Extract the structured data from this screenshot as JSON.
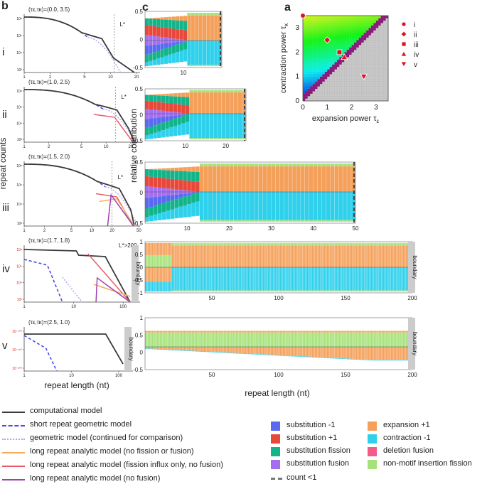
{
  "panel_labels": {
    "b": "b",
    "c": "c",
    "a": "a"
  },
  "row_labels": [
    "i",
    "ii",
    "iii",
    "iv",
    "v"
  ],
  "chart_data": [
    {
      "id": "a",
      "type": "heatmap",
      "xlabel": "expansion power τ",
      "xlabel_sub": "ε",
      "ylabel": "contraction power τ",
      "ylabel_sub": "κ",
      "xlim": [
        0,
        3.5
      ],
      "ylim": [
        0,
        3.5
      ],
      "xticks": [
        "0",
        "1",
        "2",
        "3"
      ],
      "yticks": [
        "0",
        "1",
        "2",
        "3"
      ],
      "markers": [
        {
          "name": "i",
          "shape": "circle",
          "x": 0.0,
          "y": 3.5
        },
        {
          "name": "ii",
          "shape": "diamond",
          "x": 1.0,
          "y": 2.5
        },
        {
          "name": "iii",
          "shape": "square",
          "x": 1.5,
          "y": 2.0
        },
        {
          "name": "iv",
          "shape": "triangle-up",
          "x": 1.7,
          "y": 1.8
        },
        {
          "name": "v",
          "shape": "triangle-down",
          "x": 2.5,
          "y": 1.0
        }
      ]
    },
    {
      "id": "b",
      "type": "line",
      "ylabel": "repeat counts",
      "xlabel": "repeat length (nt)",
      "panels": [
        {
          "row": "i",
          "params": "(τε,τκ)=(0.0, 3.5)",
          "lstar": "L*",
          "lstar_x": 11,
          "xticks": [
            "1",
            "2",
            "5",
            "10",
            "20"
          ],
          "yticks": [
            "10⁸",
            "10⁶",
            "10⁴",
            "10²"
          ]
        },
        {
          "row": "ii",
          "params": "(τε,τκ)=(1.0, 2.5)",
          "lstar": "L*",
          "lstar_x": 13,
          "xticks": [
            "1",
            "2",
            "5",
            "10",
            "20"
          ],
          "yticks": [
            "10⁸",
            "10⁶",
            "10⁴",
            "10²"
          ]
        },
        {
          "row": "iii",
          "params": "(τε,τκ)=(1.5, 2.0)",
          "lstar": "L*",
          "lstar_x": 20,
          "xticks": [
            "1",
            "2",
            "5",
            "10",
            "20",
            "50"
          ],
          "yticks": [
            "10⁸",
            "10⁶",
            "10⁴",
            "10²"
          ]
        },
        {
          "row": "iv",
          "params": "(τε,τκ)=(1.7, 1.8)",
          "lstar": "L*>200",
          "xticks": [
            "1",
            "10",
            "100"
          ],
          "yticks": [
            "10⁸",
            "10⁶",
            "10⁴",
            "10²"
          ],
          "boundary": "boundary"
        },
        {
          "row": "v",
          "params": "(τε,τκ)=(2.5, 1.0)",
          "xticks": [
            "1",
            "10",
            "100"
          ],
          "yticks": [
            "10⁻¹⁰⁰",
            "10⁻¹⁵⁰",
            "10⁻²⁰⁰"
          ],
          "boundary": "boundary"
        }
      ]
    },
    {
      "id": "c",
      "type": "bar",
      "ylabel": "relative contribution",
      "xlabel": "repeat length (nt)",
      "panels": [
        {
          "row": "i",
          "xticks": [
            "10"
          ],
          "yticks": [
            "0.5",
            "0",
            "-0.5"
          ],
          "xmax": 20
        },
        {
          "row": "ii",
          "xticks": [
            "10",
            "20"
          ],
          "yticks": [
            "0.5",
            "0",
            "-0.5"
          ],
          "xmax": 25
        },
        {
          "row": "iii",
          "xticks": [
            "10",
            "20",
            "30",
            "40",
            "50"
          ],
          "yticks": [
            "0.5",
            "0",
            "-0.5"
          ],
          "xmax": 50
        },
        {
          "row": "iv",
          "xticks": [
            "50",
            "100",
            "150",
            "200"
          ],
          "yticks": [
            "1",
            "0.5",
            "0",
            "-0.5",
            "-1"
          ],
          "xmax": 200,
          "boundary": "boundary"
        },
        {
          "row": "v",
          "xticks": [
            "50",
            "100",
            "150",
            "200"
          ],
          "yticks": [
            "1",
            "0.5",
            "0",
            "-0.5"
          ],
          "xmax": 200,
          "boundary": "boundary"
        }
      ]
    }
  ],
  "legend_lines": [
    {
      "label": "computational model",
      "color": "#3a3a3a",
      "style": "solid"
    },
    {
      "label": "short repeat geometric model",
      "color": "#4a4ae8",
      "style": "dashed"
    },
    {
      "label": "geometric model (continued for comparison)",
      "color": "#a7a7f0",
      "style": "dotted"
    },
    {
      "label": "long repeat analytic model (no fission or fusion)",
      "color": "#f6ad5a",
      "style": "solid"
    },
    {
      "label": "long repeat analytic model (fission influx only, no fusion)",
      "color": "#ec5a6a",
      "style": "solid"
    },
    {
      "label": "long repeat analytic model (no fusion)",
      "color": "#a040b0",
      "style": "solid"
    }
  ],
  "legend_boxes": [
    {
      "label": "substitution -1",
      "color": "#5a6af0"
    },
    {
      "label": "substitution +1",
      "color": "#e8483a"
    },
    {
      "label": "substitution fission",
      "color": "#14b48a"
    },
    {
      "label": "substitution fusion",
      "color": "#a46ef0"
    },
    {
      "label": "expansion +1",
      "color": "#f5a05a"
    },
    {
      "label": "contraction -1",
      "color": "#2ed0ec"
    },
    {
      "label": "deletion fusion",
      "color": "#f25c8a"
    },
    {
      "label": "non-motif insertion fission",
      "color": "#a6e27a"
    }
  ],
  "legend_count": {
    "label": "count <1",
    "color": "#777777"
  }
}
